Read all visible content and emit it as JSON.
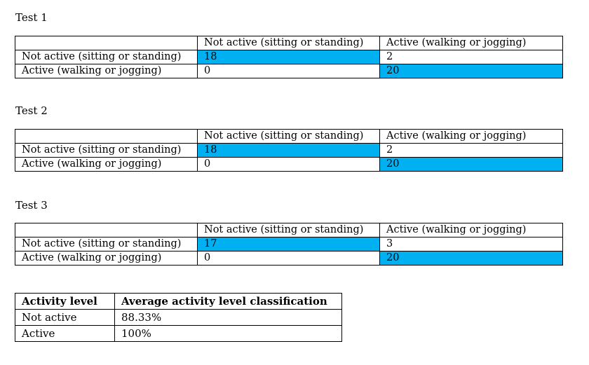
{
  "colors": {
    "highlight": "#00b0f0",
    "border": "#000000",
    "text": "#000000"
  },
  "tests": [
    {
      "title": "Test 1",
      "header": [
        "",
        "Not active (sitting or standing)",
        "Active (walking or jogging)"
      ],
      "rows": [
        {
          "label": "Not active (sitting or standing)",
          "values": [
            "18",
            "2"
          ]
        },
        {
          "label": "Active (walking or jogging)",
          "values": [
            "0",
            "20"
          ]
        }
      ]
    },
    {
      "title": "Test 2",
      "header": [
        "",
        "Not active (sitting or standing)",
        "Active (walking or jogging)"
      ],
      "rows": [
        {
          "label": "Not active (sitting or standing)",
          "values": [
            "18",
            "2"
          ]
        },
        {
          "label": "Active (walking or jogging)",
          "values": [
            "0",
            "20"
          ]
        }
      ]
    },
    {
      "title": "Test 3",
      "header": [
        "",
        "Not active (sitting or standing)",
        "Active (walking or jogging)"
      ],
      "rows": [
        {
          "label": "Not active (sitting or standing)",
          "values": [
            "17",
            "3"
          ]
        },
        {
          "label": "Active (walking or jogging)",
          "values": [
            "0",
            "20"
          ]
        }
      ]
    }
  ],
  "summary": {
    "headers": [
      "Activity level",
      "Average activity level classification"
    ],
    "rows": [
      [
        "Not active",
        "88.33%"
      ],
      [
        "Active",
        "100%"
      ]
    ]
  }
}
